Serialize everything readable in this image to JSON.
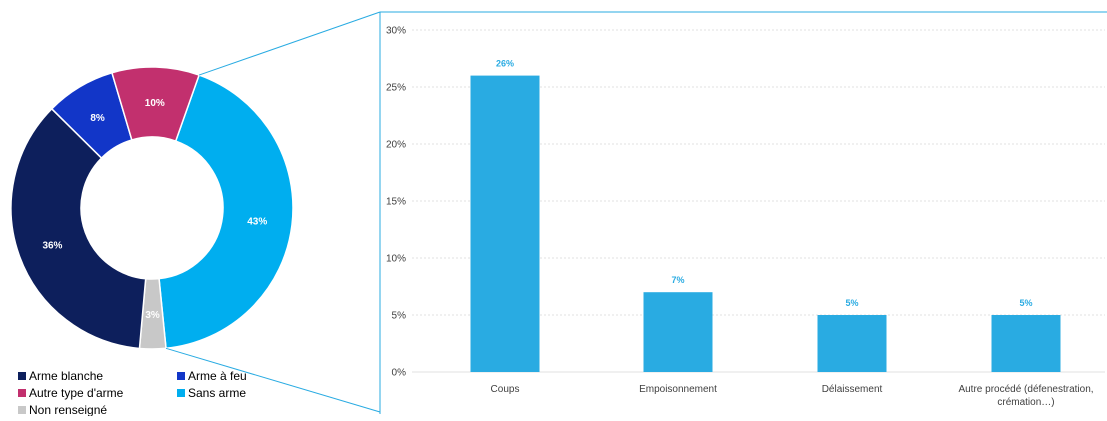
{
  "colors": {
    "arme_blanche": "#0d1f5c",
    "arme_a_feu": "#1236c8",
    "autre_type": "#c2306e",
    "sans_arme": "#00aeef",
    "non_renseigne": "#c8c8c8",
    "bar": "#29abe2",
    "connector": "#29abe2",
    "grid": "#d9d9d9",
    "axis_text": "#404040"
  },
  "chart_data": [
    {
      "type": "pie",
      "variant": "donut",
      "title": "",
      "slices": [
        {
          "key": "sans_arme",
          "label": "Sans arme",
          "value": 43,
          "display": "43%"
        },
        {
          "key": "non_renseigne",
          "label": "Non renseigné",
          "value": 3,
          "display": "3%"
        },
        {
          "key": "arme_blanche",
          "label": "Arme blanche",
          "value": 36,
          "display": "36%"
        },
        {
          "key": "arme_a_feu",
          "label": "Arme à feu",
          "value": 8,
          "display": "8%"
        },
        {
          "key": "autre_type",
          "label": "Autre type d'arme",
          "value": 10,
          "display": "10%"
        }
      ],
      "legend": [
        {
          "key": "arme_blanche",
          "label": "Arme blanche"
        },
        {
          "key": "arme_a_feu",
          "label": "Arme à feu"
        },
        {
          "key": "autre_type",
          "label": "Autre type d'arme"
        },
        {
          "key": "sans_arme",
          "label": "Sans arme"
        },
        {
          "key": "non_renseigne",
          "label": "Non renseigné"
        }
      ],
      "legend_position": "bottom"
    },
    {
      "type": "bar",
      "title": "",
      "categories": [
        "Coups",
        "Empoisonnement",
        "Délaissement",
        "Autre procédé (défenestration, crémation…)"
      ],
      "category_lines": [
        [
          "Coups"
        ],
        [
          "Empoisonnement"
        ],
        [
          "Délaissement"
        ],
        [
          "Autre procédé (défenestration,",
          "crémation…)"
        ]
      ],
      "values": [
        26,
        7,
        5,
        5
      ],
      "labels": [
        "26%",
        "7%",
        "5%",
        "5%"
      ],
      "ylim": [
        0,
        30
      ],
      "yticks": [
        0,
        5,
        10,
        15,
        20,
        25,
        30
      ],
      "ytick_labels": [
        "0%",
        "5%",
        "10%",
        "15%",
        "20%",
        "25%",
        "30%"
      ],
      "xlabel": "",
      "ylabel": "",
      "grid": true
    }
  ]
}
